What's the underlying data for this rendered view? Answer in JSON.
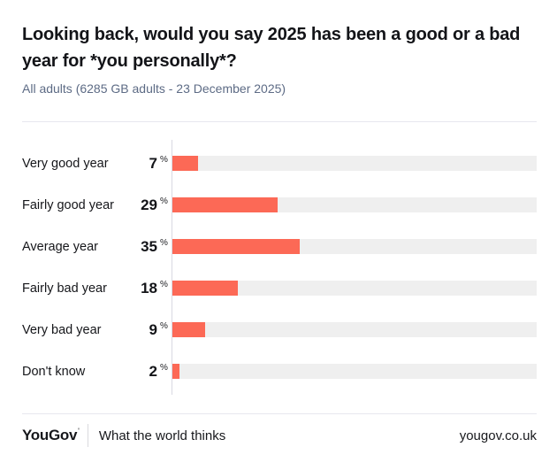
{
  "header": {
    "title": "Looking back, would you say 2025 has been a good or a bad year for *you personally*?",
    "subtitle": "All adults (6285 GB adults - 23 December 2025)"
  },
  "chart_data": {
    "type": "bar",
    "orientation": "horizontal",
    "title": "Looking back, would you say 2025 has been a good or a bad year for *you personally*?",
    "subtitle": "All adults (6285 GB adults - 23 December 2025)",
    "categories": [
      "Very good year",
      "Fairly good year",
      "Average year",
      "Fairly bad year",
      "Very bad year",
      "Don't know"
    ],
    "values": [
      7,
      29,
      35,
      18,
      9,
      2
    ],
    "unit": "%",
    "xlim": [
      0,
      100
    ],
    "grid": false,
    "legend": false,
    "value_labels_position": "left-of-bar"
  },
  "colors": {
    "bar": "#fc6956",
    "track": "#efefef",
    "subtitle": "#5d6b85",
    "divider": "#e7e7ef",
    "axis": "#d9d9e2"
  },
  "footer": {
    "logo": "YouGov",
    "trademark_mark": "'",
    "tagline": "What the world thinks",
    "url": "yougov.co.uk"
  }
}
